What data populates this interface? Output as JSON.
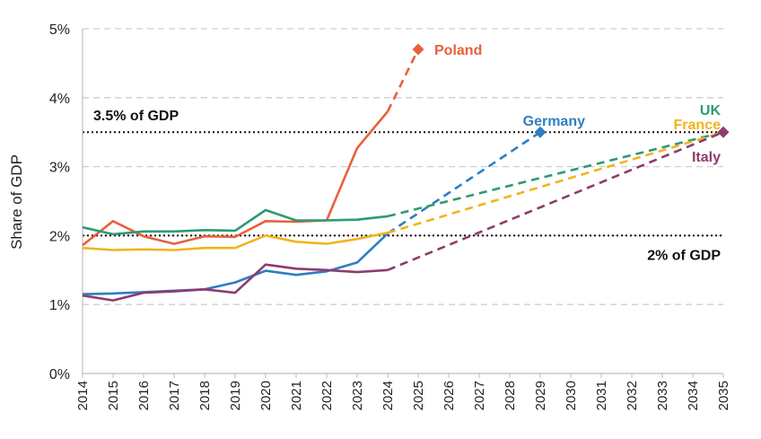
{
  "chart_data": {
    "type": "line",
    "title": "",
    "xlabel": "",
    "ylabel": "Share of GDP",
    "x": [
      2014,
      2015,
      2016,
      2017,
      2018,
      2019,
      2020,
      2021,
      2022,
      2023,
      2024,
      2025,
      2026,
      2027,
      2028,
      2029,
      2030,
      2031,
      2032,
      2033,
      2034,
      2035
    ],
    "x_tick_labels": [
      "2014",
      "2015",
      "2016",
      "2017",
      "2018",
      "2019",
      "2020",
      "2021",
      "2022",
      "2023",
      "2024",
      "2025",
      "2026",
      "2027",
      "2028",
      "2029",
      "2030",
      "2031",
      "2032",
      "2033",
      "2034",
      "2035"
    ],
    "ylim": [
      0,
      5
    ],
    "y_tick_labels": [
      "0%",
      "1%",
      "2%",
      "3%",
      "4%",
      "5%"
    ],
    "grid": "horizontal-dashed",
    "reference_lines": [
      {
        "value": 3.5,
        "label": "3.5% of GDP"
      },
      {
        "value": 2.0,
        "label": "2% of GDP"
      }
    ],
    "series": [
      {
        "name": "Poland",
        "color": "#E8603C",
        "actual": [
          [
            2014,
            1.86
          ],
          [
            2015,
            2.21
          ],
          [
            2016,
            1.99
          ],
          [
            2017,
            1.88
          ],
          [
            2018,
            1.99
          ],
          [
            2019,
            1.98
          ],
          [
            2020,
            2.21
          ],
          [
            2021,
            2.2
          ],
          [
            2022,
            2.22
          ],
          [
            2023,
            3.27
          ],
          [
            2024,
            3.8
          ]
        ],
        "projection": [
          [
            2024,
            3.8
          ],
          [
            2025,
            4.7
          ]
        ],
        "marker": [
          2025,
          4.7
        ]
      },
      {
        "name": "Germany",
        "color": "#2E7EC2",
        "actual": [
          [
            2014,
            1.15
          ],
          [
            2015,
            1.16
          ],
          [
            2016,
            1.18
          ],
          [
            2017,
            1.2
          ],
          [
            2018,
            1.22
          ],
          [
            2019,
            1.32
          ],
          [
            2020,
            1.49
          ],
          [
            2021,
            1.43
          ],
          [
            2022,
            1.48
          ],
          [
            2023,
            1.61
          ],
          [
            2024,
            2.03
          ]
        ],
        "projection": [
          [
            2024,
            2.03
          ],
          [
            2029,
            3.5
          ]
        ],
        "marker": [
          2029,
          3.5
        ]
      },
      {
        "name": "UK",
        "color": "#2E9A72",
        "actual": [
          [
            2014,
            2.12
          ],
          [
            2015,
            2.02
          ],
          [
            2016,
            2.06
          ],
          [
            2017,
            2.06
          ],
          [
            2018,
            2.08
          ],
          [
            2019,
            2.07
          ],
          [
            2020,
            2.37
          ],
          [
            2021,
            2.22
          ],
          [
            2022,
            2.22
          ],
          [
            2023,
            2.23
          ],
          [
            2024,
            2.28
          ]
        ],
        "projection": [
          [
            2024,
            2.28
          ],
          [
            2035,
            3.5
          ]
        ],
        "marker": null
      },
      {
        "name": "France",
        "color": "#F2B31C",
        "actual": [
          [
            2014,
            1.82
          ],
          [
            2015,
            1.79
          ],
          [
            2016,
            1.8
          ],
          [
            2017,
            1.79
          ],
          [
            2018,
            1.82
          ],
          [
            2019,
            1.82
          ],
          [
            2020,
            2.0
          ],
          [
            2021,
            1.91
          ],
          [
            2022,
            1.88
          ],
          [
            2023,
            1.95
          ],
          [
            2024,
            2.04
          ]
        ],
        "projection": [
          [
            2024,
            2.04
          ],
          [
            2035,
            3.5
          ]
        ],
        "marker": null
      },
      {
        "name": "Italy",
        "color": "#8E3B6E",
        "actual": [
          [
            2014,
            1.13
          ],
          [
            2015,
            1.06
          ],
          [
            2016,
            1.17
          ],
          [
            2017,
            1.19
          ],
          [
            2018,
            1.22
          ],
          [
            2019,
            1.17
          ],
          [
            2020,
            1.58
          ],
          [
            2021,
            1.52
          ],
          [
            2022,
            1.5
          ],
          [
            2023,
            1.47
          ],
          [
            2024,
            1.5
          ]
        ],
        "projection": [
          [
            2024,
            1.5
          ],
          [
            2035,
            3.5
          ]
        ],
        "marker": [
          2035,
          3.5
        ]
      }
    ],
    "legend": "inline labels"
  }
}
